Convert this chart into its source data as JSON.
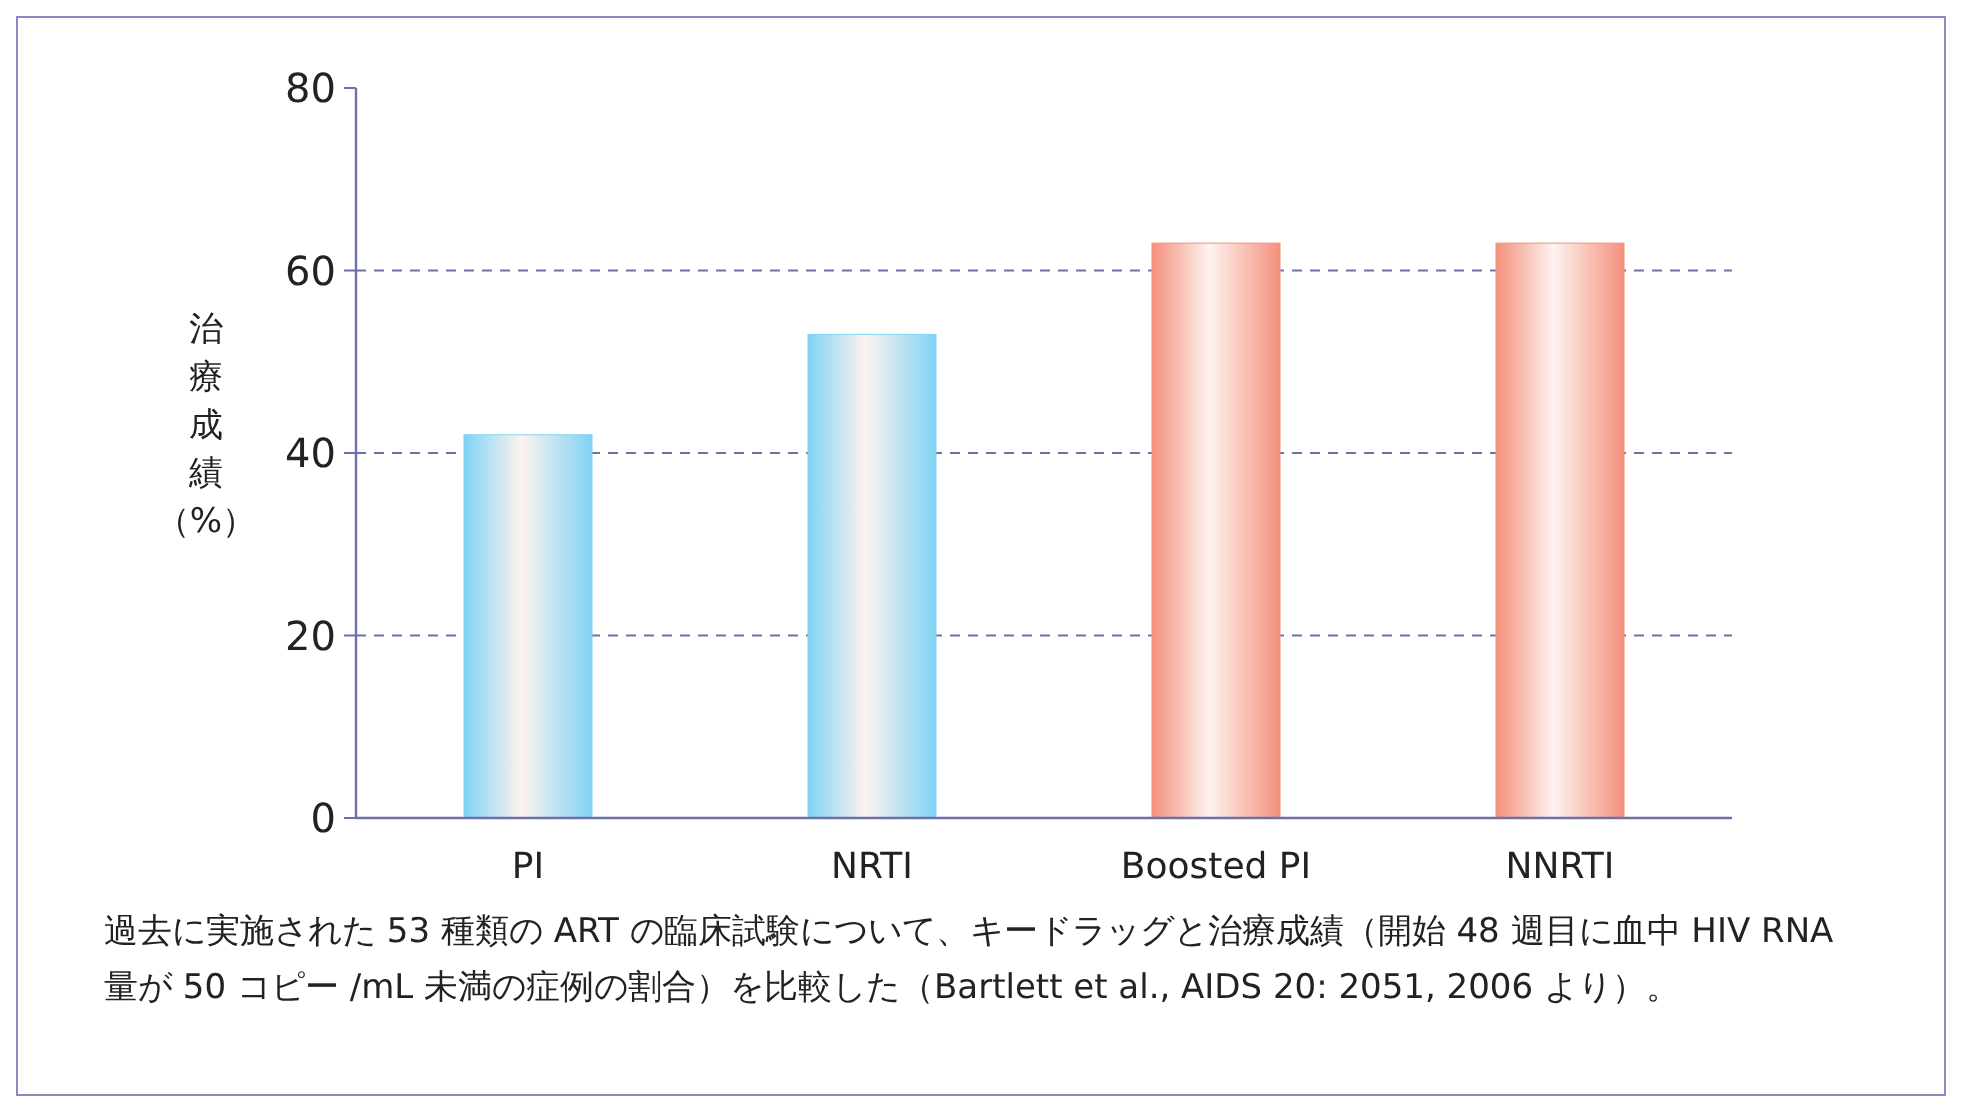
{
  "chart_data": {
    "type": "bar",
    "ylabel": "治療成績（%）",
    "categories": [
      "PI",
      "NRTI",
      "Boosted PI",
      "NNRTI"
    ],
    "values": [
      42,
      53,
      63,
      63
    ],
    "colors": [
      "#7fd3f5",
      "#7fd3f5",
      "#f4907c",
      "#f4907c"
    ],
    "ylim": [
      0,
      80
    ],
    "yticks": [
      0,
      20,
      40,
      60,
      80
    ],
    "grid": "y",
    "annotations": [
      "過去に実施された 53 種類の ART の臨床試験について、キードラッグと治療成績（開始 48 週目に血中 HIV RNA 量が 50 コピー /mL 未満の症例の割合）を比較した（Bartlett et al., AIDS 20: 2051, 2006 より）。"
    ]
  }
}
